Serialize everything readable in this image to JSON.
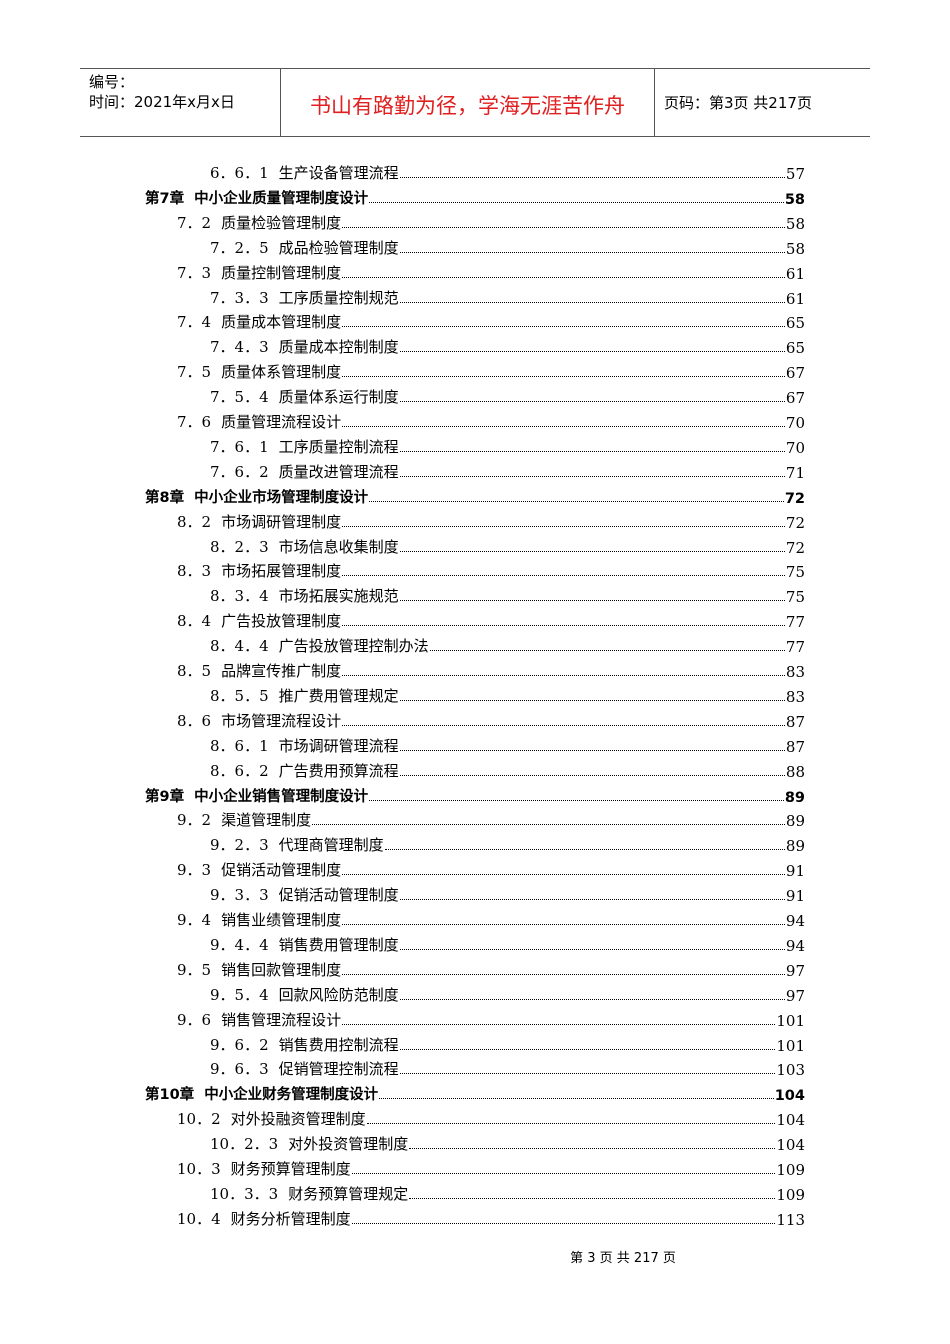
{
  "header": {
    "code_label": "编号：",
    "time_label": "时间：2021年x月x日",
    "motto": "书山有路勤为径，学海无涯苦作舟",
    "page_info": "页码：第3页  共217页"
  },
  "toc": [
    {
      "level": 2,
      "num": "6．6．1",
      "title": "生产设备管理流程",
      "page": "57"
    },
    {
      "level": 0,
      "num": "第7章",
      "title": "中小企业质量管理制度设计",
      "page": "58"
    },
    {
      "level": 1,
      "num": "7．2",
      "title": "质量检验管理制度",
      "page": "58"
    },
    {
      "level": 2,
      "num": "7．2．5",
      "title": "成品检验管理制度",
      "page": "58"
    },
    {
      "level": 1,
      "num": "7．3",
      "title": "质量控制管理制度",
      "page": "61"
    },
    {
      "level": 2,
      "num": "7．3．3",
      "title": "工序质量控制规范",
      "page": "61"
    },
    {
      "level": 1,
      "num": "7．4",
      "title": "质量成本管理制度",
      "page": "65"
    },
    {
      "level": 2,
      "num": "7．4．3",
      "title": "质量成本控制制度",
      "page": "65"
    },
    {
      "level": 1,
      "num": "7．5",
      "title": "质量体系管理制度",
      "page": "67"
    },
    {
      "level": 2,
      "num": "7．5．4",
      "title": "质量体系运行制度",
      "page": "67"
    },
    {
      "level": 1,
      "num": "7．6",
      "title": "质量管理流程设计",
      "page": "70"
    },
    {
      "level": 2,
      "num": "7．6．1",
      "title": "工序质量控制流程",
      "page": "70"
    },
    {
      "level": 2,
      "num": "7．6．2",
      "title": "质量改进管理流程",
      "page": "71"
    },
    {
      "level": 0,
      "num": "第8章",
      "title": "中小企业市场管理制度设计",
      "page": "72"
    },
    {
      "level": 1,
      "num": "8．2",
      "title": "市场调研管理制度",
      "page": "72"
    },
    {
      "level": 2,
      "num": "8．2．3",
      "title": "市场信息收集制度",
      "page": "72"
    },
    {
      "level": 1,
      "num": "8．3",
      "title": "市场拓展管理制度",
      "page": "75"
    },
    {
      "level": 2,
      "num": "8．3．4",
      "title": "市场拓展实施规范",
      "page": "75"
    },
    {
      "level": 1,
      "num": "8．4",
      "title": "广告投放管理制度",
      "page": "77"
    },
    {
      "level": 2,
      "num": "8．4．4",
      "title": "广告投放管理控制办法",
      "page": "77"
    },
    {
      "level": 1,
      "num": "8．5",
      "title": "品牌宣传推广制度",
      "page": "83"
    },
    {
      "level": 2,
      "num": "8．5．5",
      "title": "推广费用管理规定",
      "page": "83"
    },
    {
      "level": 1,
      "num": "8．6",
      "title": "市场管理流程设计",
      "page": "87"
    },
    {
      "level": 2,
      "num": "8．6．1",
      "title": "市场调研管理流程",
      "page": "87"
    },
    {
      "level": 2,
      "num": "8．6．2",
      "title": "广告费用预算流程",
      "page": "88"
    },
    {
      "level": 0,
      "num": "第9章",
      "title": "中小企业销售管理制度设计",
      "page": "89"
    },
    {
      "level": 1,
      "num": "9．2",
      "title": "渠道管理制度",
      "page": "89"
    },
    {
      "level": 2,
      "num": "9．2．3",
      "title": "代理商管理制度",
      "page": "89"
    },
    {
      "level": 1,
      "num": "9．3",
      "title": "促销活动管理制度",
      "page": "91"
    },
    {
      "level": 2,
      "num": "9．3．3",
      "title": "促销活动管理制度",
      "page": "91"
    },
    {
      "level": 1,
      "num": "9．4",
      "title": "销售业绩管理制度",
      "page": "94"
    },
    {
      "level": 2,
      "num": "9．4．4",
      "title": "销售费用管理制度",
      "page": "94"
    },
    {
      "level": 1,
      "num": "9．5",
      "title": "销售回款管理制度",
      "page": "97"
    },
    {
      "level": 2,
      "num": "9．5．4",
      "title": "回款风险防范制度",
      "page": "97"
    },
    {
      "level": 1,
      "num": "9．6",
      "title": "销售管理流程设计",
      "page": "101"
    },
    {
      "level": 2,
      "num": "9．6．2",
      "title": "销售费用控制流程",
      "page": "101"
    },
    {
      "level": 2,
      "num": "9．6．3",
      "title": "促销管理控制流程",
      "page": "103"
    },
    {
      "level": 0,
      "num": "第10章",
      "title": "中小企业财务管理制度设计",
      "page": "104"
    },
    {
      "level": 1,
      "num": "10．2",
      "title": "对外投融资管理制度",
      "page": "104"
    },
    {
      "level": 2,
      "num": "10．2．3",
      "title": "对外投资管理制度",
      "page": "104"
    },
    {
      "level": 1,
      "num": "10．3",
      "title": "财务预算管理制度",
      "page": "109"
    },
    {
      "level": 2,
      "num": "10．3．3",
      "title": "财务预算管理规定",
      "page": "109"
    },
    {
      "level": 1,
      "num": "10．4",
      "title": "财务分析管理制度",
      "page": "113"
    }
  ],
  "footer": "第 3 页 共 217 页"
}
